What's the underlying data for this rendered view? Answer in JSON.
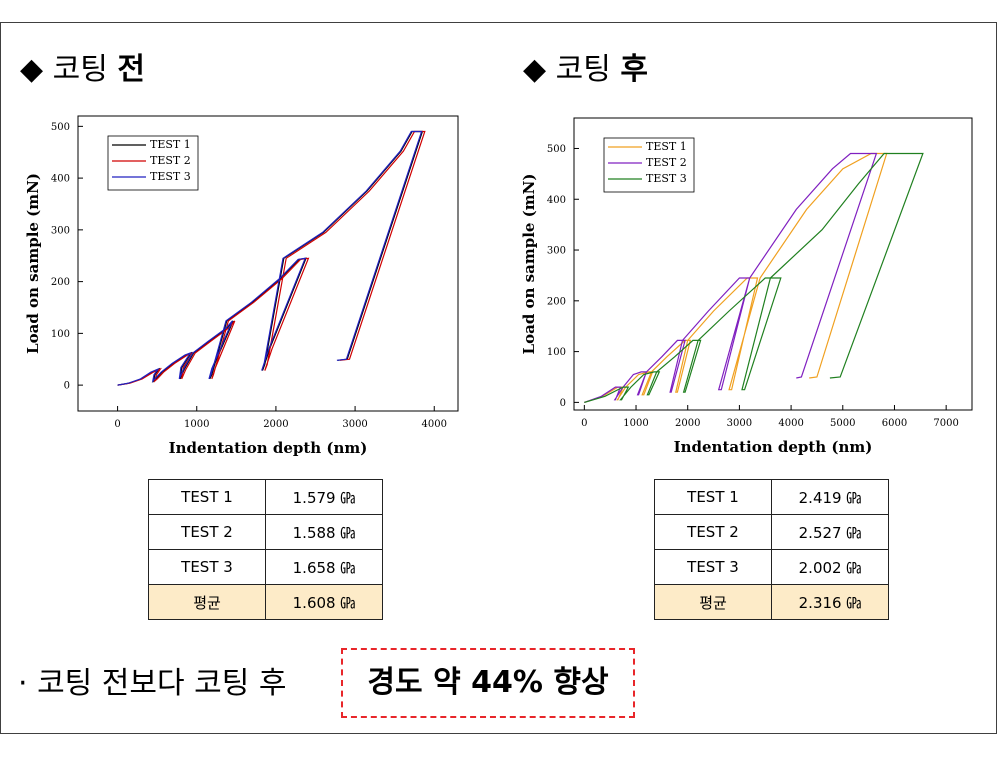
{
  "left": {
    "heading_prefix": "◆ 코팅",
    "heading_strong": "전",
    "table": [
      {
        "label": "TEST 1",
        "value": "1.579 ㎬"
      },
      {
        "label": "TEST 2",
        "value": "1.588 ㎬"
      },
      {
        "label": "TEST 3",
        "value": "1.658 ㎬"
      },
      {
        "label": "평균",
        "value": "1.608 ㎬"
      }
    ]
  },
  "right": {
    "heading_prefix": "◆ 코팅",
    "heading_strong": "후",
    "table": [
      {
        "label": "TEST 1",
        "value": "2.419 ㎬"
      },
      {
        "label": "TEST 2",
        "value": "2.527 ㎬"
      },
      {
        "label": "TEST 3",
        "value": "2.002 ㎬"
      },
      {
        "label": "평균",
        "value": "2.316 ㎬"
      }
    ]
  },
  "conclusion": {
    "text": "· 코팅 전보다 코팅 후",
    "highlight": "경도 약 44% 향상"
  },
  "chart_data": [
    {
      "type": "line",
      "title": "",
      "xlabel": "Indentation depth (nm)",
      "ylabel": "Load on sample (mN)",
      "xlim": [
        -500,
        4300
      ],
      "ylim": [
        -50,
        520
      ],
      "xticks": [
        0,
        1000,
        2000,
        3000,
        4000
      ],
      "yticks": [
        0,
        100,
        200,
        300,
        400,
        500
      ],
      "legend_position": "top-left",
      "series": [
        {
          "name": "TEST 1",
          "color": "#000000",
          "x": [
            0,
            150,
            300,
            430,
            520,
            470,
            455,
            480,
            560,
            700,
            860,
            930,
            810,
            790,
            840,
            960,
            1150,
            1380,
            1460,
            1200,
            1165,
            1190,
            1380,
            1700,
            2050,
            2290,
            2380,
            1920,
            1830,
            1860,
            2100,
            2600,
            3150,
            3580,
            3720,
            3850,
            2900,
            2780
          ],
          "y": [
            0,
            4,
            12,
            25,
            31,
            20,
            8,
            12,
            25,
            42,
            58,
            62,
            34,
            12,
            30,
            62,
            84,
            110,
            124,
            32,
            12,
            20,
            124,
            160,
            205,
            243,
            245,
            70,
            28,
            40,
            245,
            295,
            375,
            452,
            490,
            490,
            50,
            48
          ]
        },
        {
          "name": "TEST 2",
          "color": "#d00000",
          "x": [
            0,
            160,
            310,
            450,
            540,
            490,
            470,
            500,
            580,
            720,
            880,
            950,
            830,
            810,
            860,
            980,
            1170,
            1400,
            1480,
            1230,
            1190,
            1210,
            1400,
            1720,
            2070,
            2310,
            2410,
            1950,
            1860,
            1890,
            2130,
            2630,
            3180,
            3610,
            3750,
            3880,
            2930,
            2810
          ],
          "y": [
            0,
            4,
            12,
            25,
            31,
            20,
            8,
            12,
            25,
            42,
            58,
            62,
            34,
            12,
            30,
            62,
            84,
            110,
            124,
            32,
            12,
            20,
            124,
            160,
            205,
            243,
            245,
            70,
            28,
            40,
            245,
            295,
            375,
            452,
            490,
            490,
            50,
            48
          ]
        },
        {
          "name": "TEST 3",
          "color": "#2020c0",
          "x": [
            0,
            140,
            290,
            420,
            510,
            460,
            445,
            470,
            550,
            690,
            850,
            920,
            800,
            780,
            830,
            950,
            1140,
            1370,
            1450,
            1190,
            1155,
            1180,
            1370,
            1690,
            2040,
            2280,
            2370,
            1910,
            1820,
            1850,
            2090,
            2590,
            3140,
            3570,
            3710,
            3840,
            2890,
            2770
          ],
          "y": [
            0,
            4,
            12,
            25,
            31,
            20,
            8,
            12,
            25,
            42,
            58,
            62,
            34,
            12,
            30,
            62,
            84,
            110,
            124,
            32,
            12,
            20,
            124,
            160,
            205,
            243,
            245,
            70,
            28,
            40,
            245,
            295,
            375,
            452,
            490,
            490,
            50,
            48
          ]
        }
      ]
    },
    {
      "type": "line",
      "title": "",
      "xlabel": "Indentation depth (nm)",
      "ylabel": "Load on sample (mN)",
      "xlim": [
        -200,
        7500
      ],
      "ylim": [
        -15,
        560
      ],
      "xticks": [
        0,
        1000,
        2000,
        3000,
        4000,
        5000,
        6000,
        7000
      ],
      "yticks": [
        0,
        100,
        200,
        300,
        400,
        500
      ],
      "legend_position": "top-left",
      "series": [
        {
          "name": "TEST 1",
          "color": "#f0a020",
          "x": [
            0,
            350,
            650,
            750,
            650,
            640,
            800,
            1050,
            1250,
            1320,
            1150,
            1120,
            1300,
            1600,
            1950,
            2050,
            1800,
            1770,
            2000,
            2500,
            3150,
            3350,
            2850,
            2800,
            3400,
            4300,
            5000,
            5550,
            5850,
            4500,
            4350
          ],
          "y": [
            0,
            12,
            30,
            30,
            5,
            5,
            30,
            55,
            60,
            60,
            15,
            15,
            60,
            90,
            122,
            122,
            20,
            20,
            122,
            180,
            245,
            245,
            25,
            25,
            245,
            380,
            460,
            490,
            490,
            50,
            48
          ]
        },
        {
          "name": "TEST 2",
          "color": "#8020c0",
          "x": [
            0,
            330,
            600,
            700,
            600,
            590,
            750,
            950,
            1100,
            1200,
            1050,
            1030,
            1200,
            1500,
            1800,
            1950,
            1680,
            1660,
            1900,
            2400,
            3000,
            3200,
            2650,
            2600,
            3200,
            4100,
            4800,
            5150,
            5650,
            4200,
            4100
          ],
          "y": [
            0,
            12,
            30,
            30,
            5,
            5,
            30,
            55,
            60,
            60,
            15,
            15,
            60,
            90,
            122,
            122,
            20,
            20,
            122,
            180,
            245,
            245,
            25,
            25,
            245,
            380,
            460,
            490,
            490,
            50,
            48
          ]
        },
        {
          "name": "TEST 3",
          "color": "#208020",
          "x": [
            0,
            400,
            750,
            850,
            720,
            700,
            900,
            1150,
            1350,
            1450,
            1250,
            1220,
            1400,
            1750,
            2100,
            2250,
            1950,
            1920,
            2200,
            2800,
            3500,
            3800,
            3100,
            3050,
            3600,
            4600,
            5300,
            5800,
            6550,
            4950,
            4750
          ],
          "y": [
            0,
            12,
            30,
            30,
            5,
            5,
            30,
            55,
            60,
            60,
            15,
            15,
            60,
            90,
            122,
            122,
            20,
            20,
            122,
            180,
            245,
            245,
            25,
            25,
            245,
            340,
            430,
            490,
            490,
            50,
            48
          ]
        }
      ]
    }
  ]
}
